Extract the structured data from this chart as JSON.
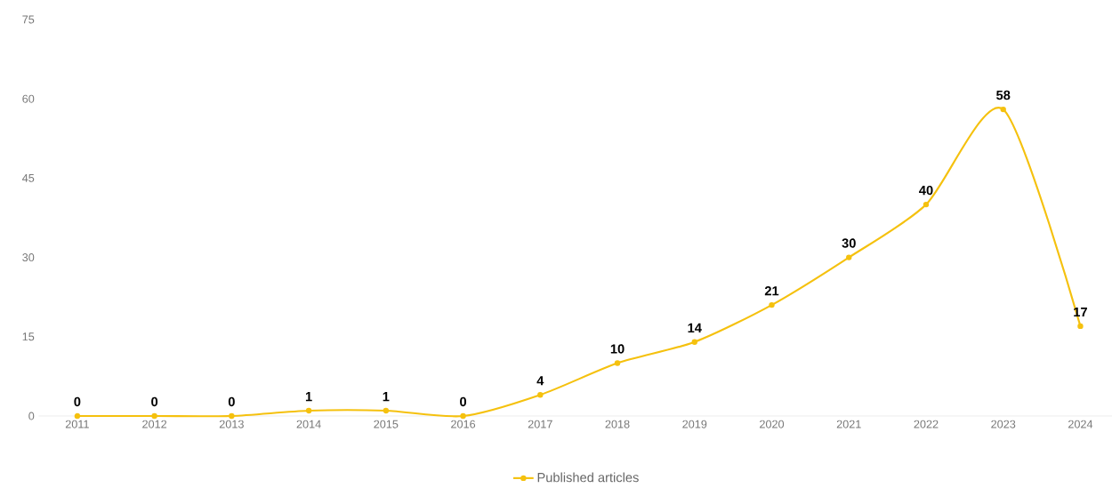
{
  "chart_data": {
    "type": "line",
    "categories": [
      "2011",
      "2012",
      "2013",
      "2014",
      "2015",
      "2016",
      "2017",
      "2018",
      "2019",
      "2020",
      "2021",
      "2022",
      "2023",
      "2024"
    ],
    "series": [
      {
        "name": "Published articles",
        "color": "#f5c10e",
        "values": [
          0,
          0,
          0,
          1,
          1,
          0,
          4,
          10,
          14,
          21,
          30,
          40,
          58,
          17
        ]
      }
    ],
    "ylim": [
      0,
      75
    ],
    "yticks": [
      0,
      15,
      30,
      45,
      60,
      75
    ],
    "data_labels": true,
    "legend": "bottom",
    "marker": "circle",
    "line_style": "solid",
    "grid": false
  }
}
